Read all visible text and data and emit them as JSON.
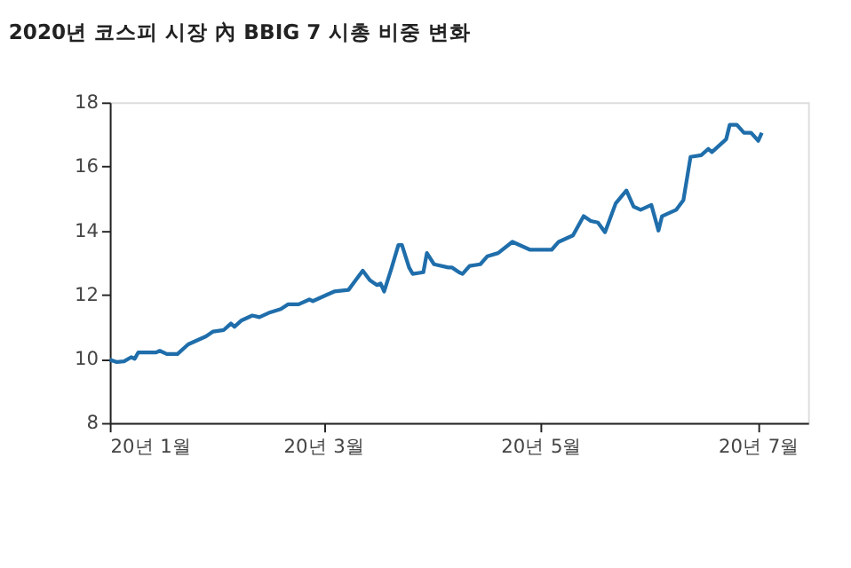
{
  "chart_data": {
    "type": "line",
    "title": "2020년 코스피 시장 內 BBIG 7 시총 비중 변화",
    "x": [
      "2020-01-01",
      "2020-01-03",
      "2020-01-05",
      "2020-01-07",
      "2020-01-08",
      "2020-01-09",
      "2020-01-14",
      "2020-01-15",
      "2020-01-17",
      "2020-01-20",
      "2020-01-23",
      "2020-01-28",
      "2020-01-30",
      "2020-02-02",
      "2020-02-04",
      "2020-02-05",
      "2020-02-07",
      "2020-02-10",
      "2020-02-12",
      "2020-02-15",
      "2020-02-18",
      "2020-02-20",
      "2020-02-23",
      "2020-02-26",
      "2020-02-27",
      "2020-03-02",
      "2020-03-04",
      "2020-03-08",
      "2020-03-10",
      "2020-03-12",
      "2020-03-14",
      "2020-03-16",
      "2020-03-17",
      "2020-03-18",
      "2020-03-20",
      "2020-03-22",
      "2020-03-23",
      "2020-03-25",
      "2020-03-26",
      "2020-03-29",
      "2020-03-30",
      "2020-04-01",
      "2020-04-05",
      "2020-04-06",
      "2020-04-08",
      "2020-04-09",
      "2020-04-11",
      "2020-04-14",
      "2020-04-16",
      "2020-04-19",
      "2020-04-23",
      "2020-04-28",
      "2020-05-04",
      "2020-05-06",
      "2020-05-10",
      "2020-05-13",
      "2020-05-15",
      "2020-05-17",
      "2020-05-19",
      "2020-05-22",
      "2020-05-25",
      "2020-05-27",
      "2020-05-29",
      "2020-06-01",
      "2020-06-03",
      "2020-06-04",
      "2020-06-08",
      "2020-06-10",
      "2020-06-12",
      "2020-06-15",
      "2020-06-17",
      "2020-06-18",
      "2020-06-22",
      "2020-06-23",
      "2020-06-25",
      "2020-06-27",
      "2020-06-29",
      "2020-07-01",
      "2020-07-02"
    ],
    "series": [
      {
        "color": "#1f6eab",
        "values": [
          9.97,
          9.9,
          9.92,
          10.05,
          10.0,
          10.2,
          10.2,
          10.25,
          10.15,
          10.15,
          10.45,
          10.7,
          10.85,
          10.9,
          11.1,
          11.0,
          11.2,
          11.35,
          11.3,
          11.45,
          11.55,
          11.7,
          11.7,
          11.85,
          11.8,
          12.0,
          12.1,
          12.15,
          12.45,
          12.75,
          12.45,
          12.3,
          12.35,
          12.1,
          12.8,
          13.55,
          13.55,
          12.85,
          12.65,
          12.7,
          13.3,
          12.95,
          12.85,
          12.85,
          12.7,
          12.65,
          12.9,
          12.95,
          13.2,
          13.3,
          13.65,
          13.4,
          13.4,
          13.65,
          13.85,
          14.45,
          14.3,
          14.25,
          13.95,
          14.85,
          15.25,
          14.75,
          14.65,
          14.8,
          14.0,
          14.45,
          14.65,
          14.95,
          16.3,
          16.35,
          16.55,
          16.45,
          16.85,
          17.3,
          17.3,
          17.05,
          17.05,
          16.8,
          17.05
        ]
      }
    ],
    "xlim": [
      "2020-01-01",
      "2020-07-15"
    ],
    "xticks": [
      {
        "value": "2020-01-01",
        "label": "20년 1월"
      },
      {
        "value": "2020-03-01",
        "label": "20년 3월"
      },
      {
        "value": "2020-05-01",
        "label": "20년 5월"
      },
      {
        "value": "2020-07-01",
        "label": "20년 7월"
      }
    ],
    "ylim": [
      8,
      18
    ],
    "yticks": [
      8,
      10,
      12,
      14,
      16,
      18
    ],
    "grid": false,
    "marker": "none",
    "line_style": "solid"
  }
}
